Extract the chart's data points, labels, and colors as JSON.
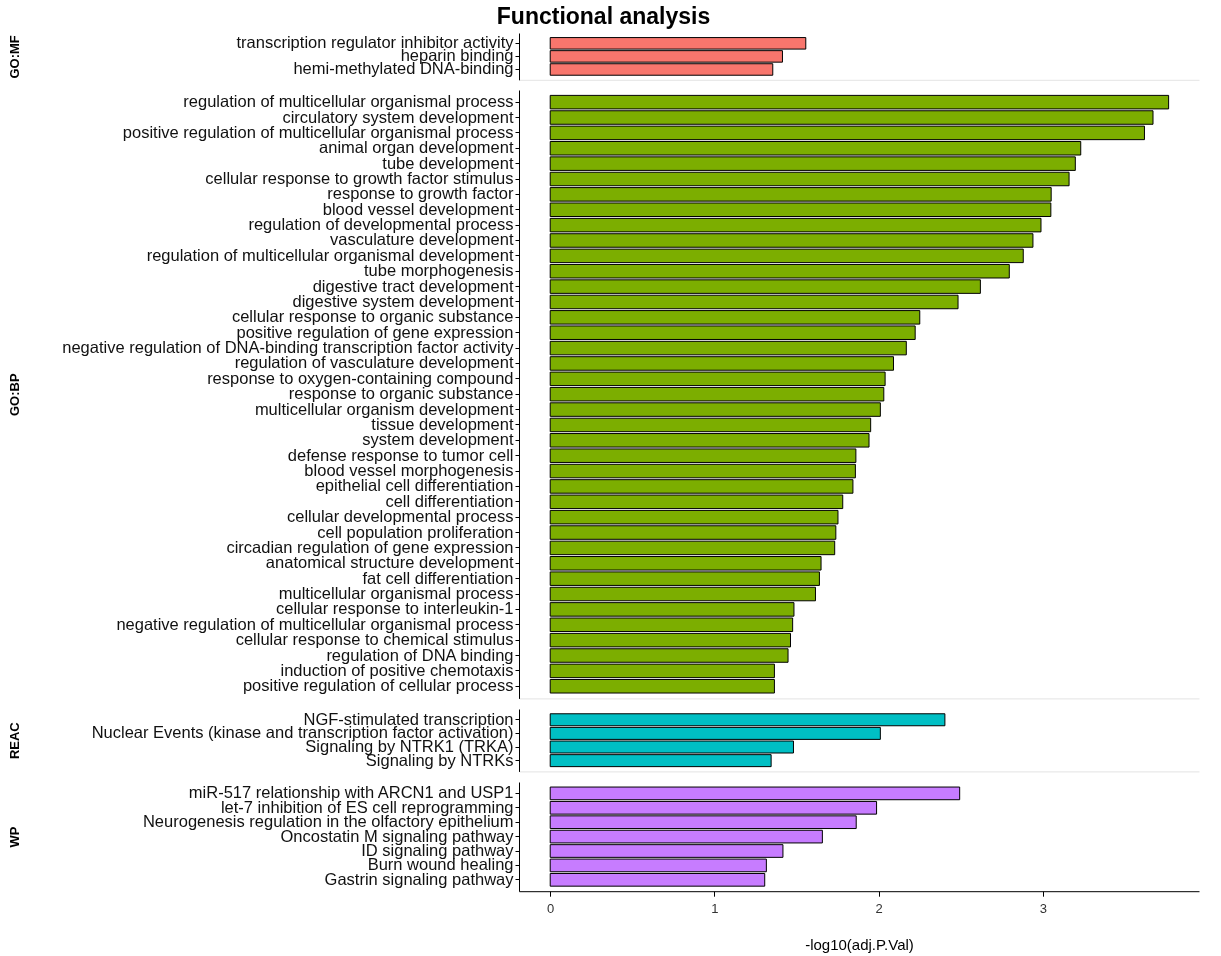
{
  "chart_data": [
    {
      "type": "bar",
      "orientation": "horizontal",
      "title": "Functional analysis",
      "ylabel": "GO:MF",
      "categories": [
        "transcription regulator inhibitor activity",
        "heparin binding",
        "hemi-methylated DNA-binding"
      ],
      "series": [
        {
          "color": "#f8766d",
          "values": [
            1.556,
            1.414,
            1.355
          ]
        }
      ],
      "xlim": [
        -0.19,
        3.95
      ],
      "xticks": [
        0,
        1,
        2,
        3
      ],
      "tick_labels": "y"
    },
    {
      "type": "bar",
      "orientation": "horizontal",
      "ylabel": "GO:BP",
      "categories": [
        "regulation of multicellular organismal process",
        "circulatory system development",
        "positive regulation of multicellular organismal process",
        "animal organ development",
        "tube development",
        "cellular response to growth factor stimulus",
        "response to growth factor",
        "blood vessel development",
        "regulation of developmental process",
        "vasculature development",
        "regulation of multicellular organismal development",
        "tube morphogenesis",
        "digestive tract development",
        "digestive system development",
        "cellular response to organic substance",
        "positive regulation of gene expression",
        "negative regulation of DNA-binding transcription factor activity",
        "regulation of vasculature development",
        "response to oxygen-containing compound",
        "response to organic substance",
        "multicellular organism development",
        "tissue development",
        "system development",
        "defense response to tumor cell",
        "blood vessel morphogenesis",
        "epithelial cell differentiation",
        "cell differentiation",
        "cellular developmental process",
        "cell population proliferation",
        "circadian regulation of gene expression",
        "anatomical structure development",
        "fat cell differentiation",
        "multicellular organismal process",
        "cellular response to interleukin-1",
        "negative regulation of multicellular organismal process",
        "cellular response to chemical stimulus",
        "regulation of DNA binding",
        "induction of positive chemotaxis",
        "positive regulation of cellular process"
      ],
      "series": [
        {
          "color": "#7cae00",
          "values": [
            3.765,
            3.67,
            3.618,
            3.23,
            3.197,
            3.159,
            3.05,
            3.048,
            2.988,
            2.939,
            2.88,
            2.795,
            2.619,
            2.483,
            2.25,
            2.222,
            2.168,
            2.09,
            2.039,
            2.031,
            2.01,
            1.951,
            1.941,
            1.861,
            1.858,
            1.843,
            1.781,
            1.752,
            1.739,
            1.732,
            1.649,
            1.639,
            1.615,
            1.484,
            1.476,
            1.463,
            1.448,
            1.365,
            1.365
          ]
        }
      ],
      "xlim": [
        -0.19,
        3.95
      ],
      "xticks": [
        0,
        1,
        2,
        3
      ],
      "tick_labels": "y"
    },
    {
      "type": "bar",
      "orientation": "horizontal",
      "ylabel": "REAC",
      "categories": [
        "NGF-stimulated transcription",
        "Nuclear Events (kinase and transcription factor activation)",
        "Signaling by NTRK1 (TRKA)",
        "Signaling by NTRKs"
      ],
      "series": [
        {
          "color": "#00bfc4",
          "values": [
            2.403,
            2.01,
            1.481,
            1.345
          ]
        }
      ],
      "xlim": [
        -0.19,
        3.95
      ],
      "xticks": [
        0,
        1,
        2,
        3
      ],
      "tick_labels": "y"
    },
    {
      "type": "bar",
      "orientation": "horizontal",
      "ylabel": "WP",
      "xlabel": "-log10(adj.P.Val)",
      "categories": [
        "miR-517 relationship with ARCN1 and USP1",
        "let-7 inhibition of ES cell reprogramming",
        "Neurogenesis regulation in the olfactory epithelium",
        "Oncostatin M signaling pathway",
        "ID signaling pathway",
        "Burn wound healing",
        "Gastrin signaling pathway"
      ],
      "series": [
        {
          "color": "#c77cff",
          "values": [
            2.493,
            1.987,
            1.863,
            1.657,
            1.417,
            1.316,
            1.306
          ]
        }
      ],
      "xlim": [
        -0.19,
        3.95
      ],
      "xticks": [
        0,
        1,
        2,
        3
      ]
    }
  ]
}
